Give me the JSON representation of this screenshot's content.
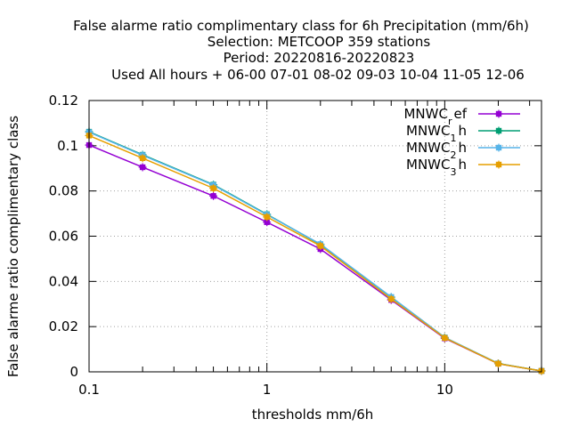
{
  "chart_data": {
    "type": "line",
    "title_lines": [
      "False alarme ratio complimentary class  for 6h Precipitation (mm/6h)",
      "Selection: METCOOP    359 stations",
      "Period: 20220816-20220823",
      "Used  All hours  + 06-00 07-01 08-02 09-03 10-04 11-05 12-06"
    ],
    "xlabel": "thresholds mm/6h",
    "ylabel": "False alarme ratio complimentary class",
    "x_scale": "log",
    "xlim": [
      0.1,
      35
    ],
    "ylim": [
      0,
      0.12
    ],
    "x_ticks": [
      {
        "value": 0.1,
        "label": "0.1"
      },
      {
        "value": 1,
        "label": "1"
      },
      {
        "value": 10,
        "label": "10"
      }
    ],
    "y_ticks": [
      {
        "value": 0,
        "label": "0"
      },
      {
        "value": 0.02,
        "label": "0.02"
      },
      {
        "value": 0.04,
        "label": "0.04"
      },
      {
        "value": 0.06,
        "label": "0.06"
      },
      {
        "value": 0.08,
        "label": "0.08"
      },
      {
        "value": 0.1,
        "label": "0.1"
      },
      {
        "value": 0.12,
        "label": "0.12"
      }
    ],
    "x": [
      0.1,
      0.2,
      0.5,
      1,
      2,
      5,
      10,
      20,
      35
    ],
    "grid": true,
    "legend_position": "top-right",
    "series": [
      {
        "name_base": "MNWC",
        "name_sub": "r",
        "name_rest": "ef",
        "color": "#9400d3",
        "values": [
          0.1003,
          0.0905,
          0.0778,
          0.0662,
          0.0543,
          0.0318,
          0.0148,
          0.0036,
          0.0004
        ]
      },
      {
        "name_base": "MNWC",
        "name_sub": "1",
        "name_rest": "h",
        "color": "#009e73",
        "values": [
          0.1062,
          0.096,
          0.0828,
          0.0697,
          0.0563,
          0.033,
          0.0152,
          0.0037,
          0.0004
        ]
      },
      {
        "name_base": "MNWC",
        "name_sub": "2",
        "name_rest": "h",
        "color": "#56b4e9",
        "values": [
          0.106,
          0.0958,
          0.0826,
          0.0695,
          0.0565,
          0.0331,
          0.0152,
          0.0037,
          0.0004
        ]
      },
      {
        "name_base": "MNWC",
        "name_sub": "3",
        "name_rest": "h",
        "color": "#e69f00",
        "values": [
          0.1045,
          0.0945,
          0.0812,
          0.0685,
          0.0557,
          0.0322,
          0.015,
          0.0036,
          0.0004
        ]
      }
    ]
  }
}
